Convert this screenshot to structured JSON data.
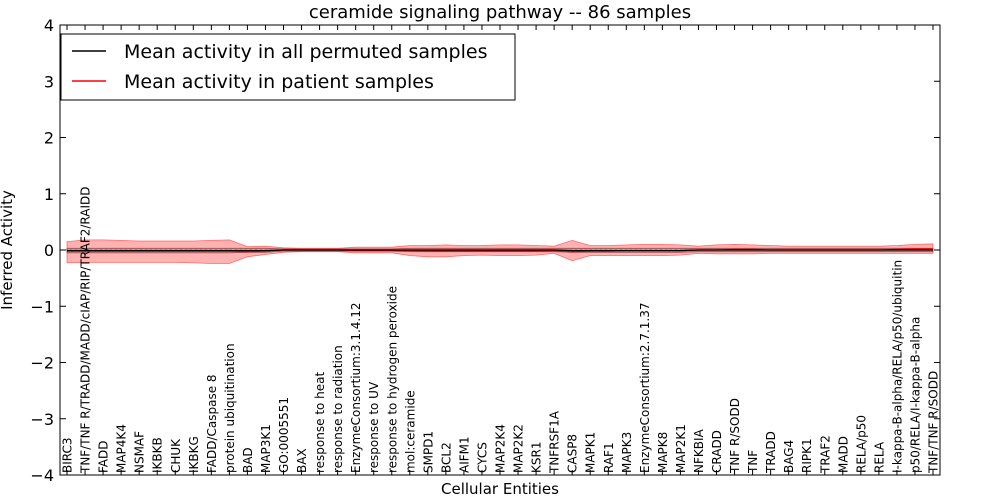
{
  "chart_data": {
    "type": "line",
    "title": "ceramide signaling pathway -- 86 samples",
    "xlabel": "Cellular Entities",
    "ylabel": "Inferred Activity",
    "ylim": [
      -4,
      4
    ],
    "yticks": [
      -4,
      -3,
      -2,
      -1,
      0,
      1,
      2,
      3,
      4
    ],
    "ytick_labels": [
      "−4",
      "−3",
      "−2",
      "−1",
      "0",
      "1",
      "2",
      "3",
      "4"
    ],
    "legend_position": "top-left",
    "categories": [
      "BIRC3",
      "TNF/TNF R/TRADD/MADD/cIAP/RIP/TRAF2/RAIDD",
      "FADD",
      "MAP4K4",
      "NSMAF",
      "IKBKB",
      "CHUK",
      "IKBKG",
      "FADD/Caspase 8",
      "protein ubiquitination",
      "BAD",
      "MAP3K1",
      "GO:0005551",
      "BAX",
      "response to heat",
      "response to radiation",
      "EnzymeConsortium:3.1.4.12",
      "response to UV",
      "response to hydrogen peroxide",
      "mol:ceramide",
      "SMPD1",
      "BCL2",
      "AIFM1",
      "CYCS",
      "MAP2K4",
      "MAP2K2",
      "KSR1",
      "TNFRSF1A",
      "CASP8",
      "MAPK1",
      "RAF1",
      "MAPK3",
      "EnzymeConsortium:2.7.1.37",
      "MAPK8",
      "MAP2K1",
      "NFKBIA",
      "CRADD",
      "TNF R/SODD",
      "TNF",
      "TRADD",
      "BAG4",
      "RIPK1",
      "TRAF2",
      "MADD",
      "RELA/p50",
      "RELA",
      "I-kappa-B-alpha/RELA/p50/ubiquitin",
      "p50/RELA/I-kappa-B-alpha",
      "TNF/TNF R/SODD"
    ],
    "series": [
      {
        "name": "Mean activity in all permuted samples",
        "color": "#000000",
        "values": [
          -0.01,
          -0.01,
          -0.01,
          -0.01,
          -0.01,
          -0.01,
          -0.01,
          -0.01,
          -0.01,
          -0.01,
          -0.01,
          -0.01,
          0,
          0,
          0,
          0,
          0,
          0,
          0,
          0,
          0,
          0,
          0,
          0,
          0,
          0,
          0,
          0,
          -0.01,
          -0.01,
          -0.01,
          -0.01,
          -0.01,
          -0.01,
          -0.01,
          0,
          0,
          0,
          0,
          0,
          0,
          0,
          0,
          0,
          0,
          0,
          0,
          0,
          0
        ],
        "band_lower": [
          -0.05,
          -0.05,
          -0.05,
          -0.05,
          -0.05,
          -0.05,
          -0.05,
          -0.05,
          -0.05,
          -0.05,
          -0.04,
          -0.04,
          -0.02,
          -0.02,
          -0.02,
          -0.02,
          -0.02,
          -0.02,
          -0.02,
          -0.03,
          -0.03,
          -0.03,
          -0.03,
          -0.03,
          -0.03,
          -0.03,
          -0.03,
          -0.03,
          -0.04,
          -0.04,
          -0.04,
          -0.04,
          -0.04,
          -0.04,
          -0.04,
          -0.03,
          -0.03,
          -0.03,
          -0.03,
          -0.03,
          -0.03,
          -0.03,
          -0.03,
          -0.03,
          -0.03,
          -0.03,
          -0.03,
          -0.03,
          -0.03
        ],
        "band_upper": [
          0.03,
          0.03,
          0.03,
          0.03,
          0.03,
          0.03,
          0.03,
          0.03,
          0.03,
          0.03,
          0.03,
          0.03,
          0.02,
          0.02,
          0.02,
          0.02,
          0.02,
          0.02,
          0.02,
          0.03,
          0.03,
          0.03,
          0.03,
          0.03,
          0.03,
          0.03,
          0.03,
          0.03,
          0.03,
          0.03,
          0.03,
          0.03,
          0.03,
          0.03,
          0.03,
          0.03,
          0.03,
          0.03,
          0.03,
          0.03,
          0.03,
          0.03,
          0.03,
          0.03,
          0.03,
          0.03,
          0.03,
          0.03,
          0.03
        ]
      },
      {
        "name": "Mean activity in patient samples",
        "color": "#ff0000",
        "values": [
          -0.02,
          -0.02,
          -0.02,
          -0.02,
          -0.02,
          -0.02,
          -0.02,
          -0.02,
          -0.02,
          -0.02,
          -0.03,
          -0.02,
          0,
          0,
          0,
          0,
          -0.01,
          -0.01,
          -0.01,
          -0.01,
          -0.02,
          -0.02,
          -0.02,
          -0.02,
          -0.02,
          -0.02,
          -0.02,
          -0.01,
          -0.03,
          -0.02,
          -0.02,
          -0.01,
          -0.01,
          -0.01,
          -0.01,
          0,
          0,
          0.01,
          0.01,
          0,
          0,
          0,
          0,
          0,
          0,
          0,
          0.01,
          0.02,
          0.02
        ],
        "band_lower": [
          -0.23,
          -0.22,
          -0.22,
          -0.22,
          -0.22,
          -0.22,
          -0.22,
          -0.23,
          -0.24,
          -0.24,
          -0.12,
          -0.08,
          -0.04,
          -0.03,
          -0.03,
          -0.03,
          -0.05,
          -0.05,
          -0.05,
          -0.1,
          -0.12,
          -0.12,
          -0.1,
          -0.09,
          -0.1,
          -0.1,
          -0.09,
          -0.06,
          -0.19,
          -0.1,
          -0.1,
          -0.1,
          -0.1,
          -0.1,
          -0.09,
          -0.06,
          -0.07,
          -0.07,
          -0.07,
          -0.06,
          -0.06,
          -0.06,
          -0.06,
          -0.06,
          -0.06,
          -0.06,
          -0.06,
          -0.06,
          -0.06
        ],
        "band_upper": [
          0.15,
          0.18,
          0.18,
          0.17,
          0.16,
          0.16,
          0.16,
          0.16,
          0.17,
          0.18,
          0.06,
          0.07,
          0.04,
          0.03,
          0.03,
          0.03,
          0.05,
          0.05,
          0.05,
          0.08,
          0.08,
          0.09,
          0.08,
          0.08,
          0.09,
          0.09,
          0.08,
          0.07,
          0.17,
          0.08,
          0.08,
          0.09,
          0.1,
          0.1,
          0.09,
          0.07,
          0.09,
          0.1,
          0.09,
          0.08,
          0.07,
          0.07,
          0.07,
          0.07,
          0.07,
          0.07,
          0.08,
          0.1,
          0.11
        ]
      }
    ]
  }
}
